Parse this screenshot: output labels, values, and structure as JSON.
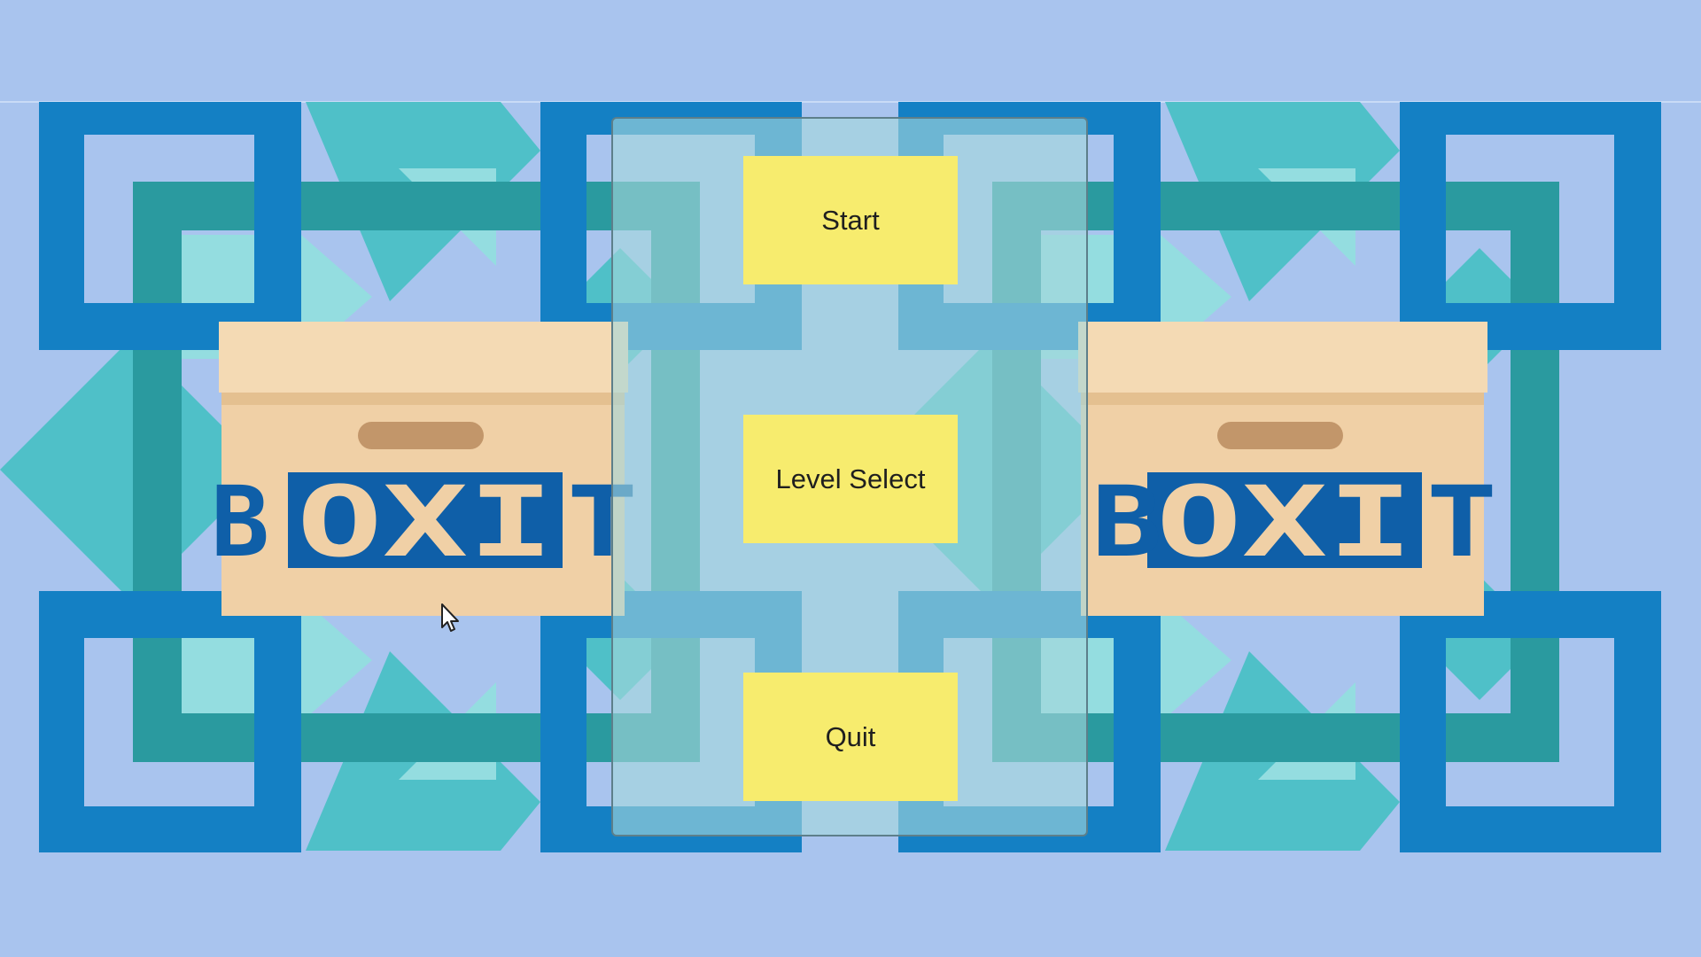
{
  "game": {
    "logo_word": "BOXIT"
  },
  "menu": {
    "start_label": "Start",
    "level_select_label": "Level Select",
    "quit_label": "Quit"
  },
  "colors": {
    "background": "#a9c4ee",
    "dark_blue_frame": "#1480c4",
    "teal": "#2a9a9f",
    "aqua": "#4fc0c8",
    "light_aqua": "#94dde0",
    "box_body": "#f0d0a6",
    "box_lid": "#f4dab4",
    "box_handle": "#c2966a",
    "stamp_blue": "#0f5fa8",
    "button_yellow": "#f7ec6e"
  },
  "icons": {
    "cursor": "mouse-pointer-icon"
  }
}
